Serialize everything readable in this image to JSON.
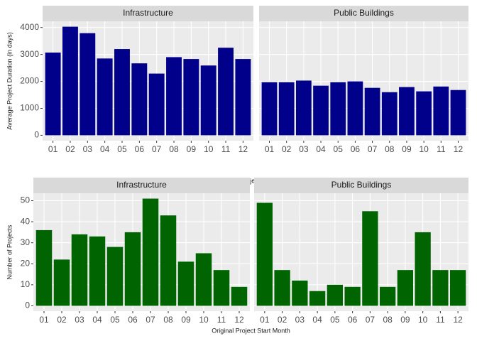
{
  "chart_data": [
    {
      "type": "bar",
      "y_label": "Average Project Duration (in days)",
      "x_label": "Original Project Start Month",
      "categories": [
        "01",
        "02",
        "03",
        "04",
        "05",
        "06",
        "07",
        "08",
        "09",
        "10",
        "11",
        "12"
      ],
      "color": "#00008b",
      "ylim": [
        -200,
        4230
      ],
      "yticks": [
        0,
        1000,
        2000,
        3000,
        4000
      ],
      "grid": true,
      "facets": [
        {
          "title": "Infrastructure",
          "values": [
            3070,
            4030,
            3790,
            2850,
            3200,
            2670,
            2290,
            2900,
            2830,
            2590,
            3250,
            2830
          ]
        },
        {
          "title": "Public Buildings",
          "values": [
            1970,
            1970,
            2030,
            1840,
            1970,
            2000,
            1760,
            1600,
            1790,
            1630,
            1810,
            1680
          ]
        }
      ]
    },
    {
      "type": "bar",
      "y_label": "Number of Projects",
      "x_label": "Original Project Start Month",
      "categories": [
        "01",
        "02",
        "03",
        "04",
        "05",
        "06",
        "07",
        "08",
        "09",
        "10",
        "11",
        "12"
      ],
      "color": "#006400",
      "ylim": [
        -2.55,
        53.55
      ],
      "yticks": [
        0,
        10,
        20,
        30,
        40,
        50
      ],
      "grid": true,
      "facets": [
        {
          "title": "Infrastructure",
          "values": [
            36,
            22,
            34,
            33,
            28,
            35,
            51,
            43,
            21,
            25,
            17,
            9
          ]
        },
        {
          "title": "Public Buildings",
          "values": [
            49,
            17,
            12,
            7,
            10,
            9,
            45,
            9,
            17,
            35,
            17,
            17
          ]
        }
      ]
    }
  ]
}
